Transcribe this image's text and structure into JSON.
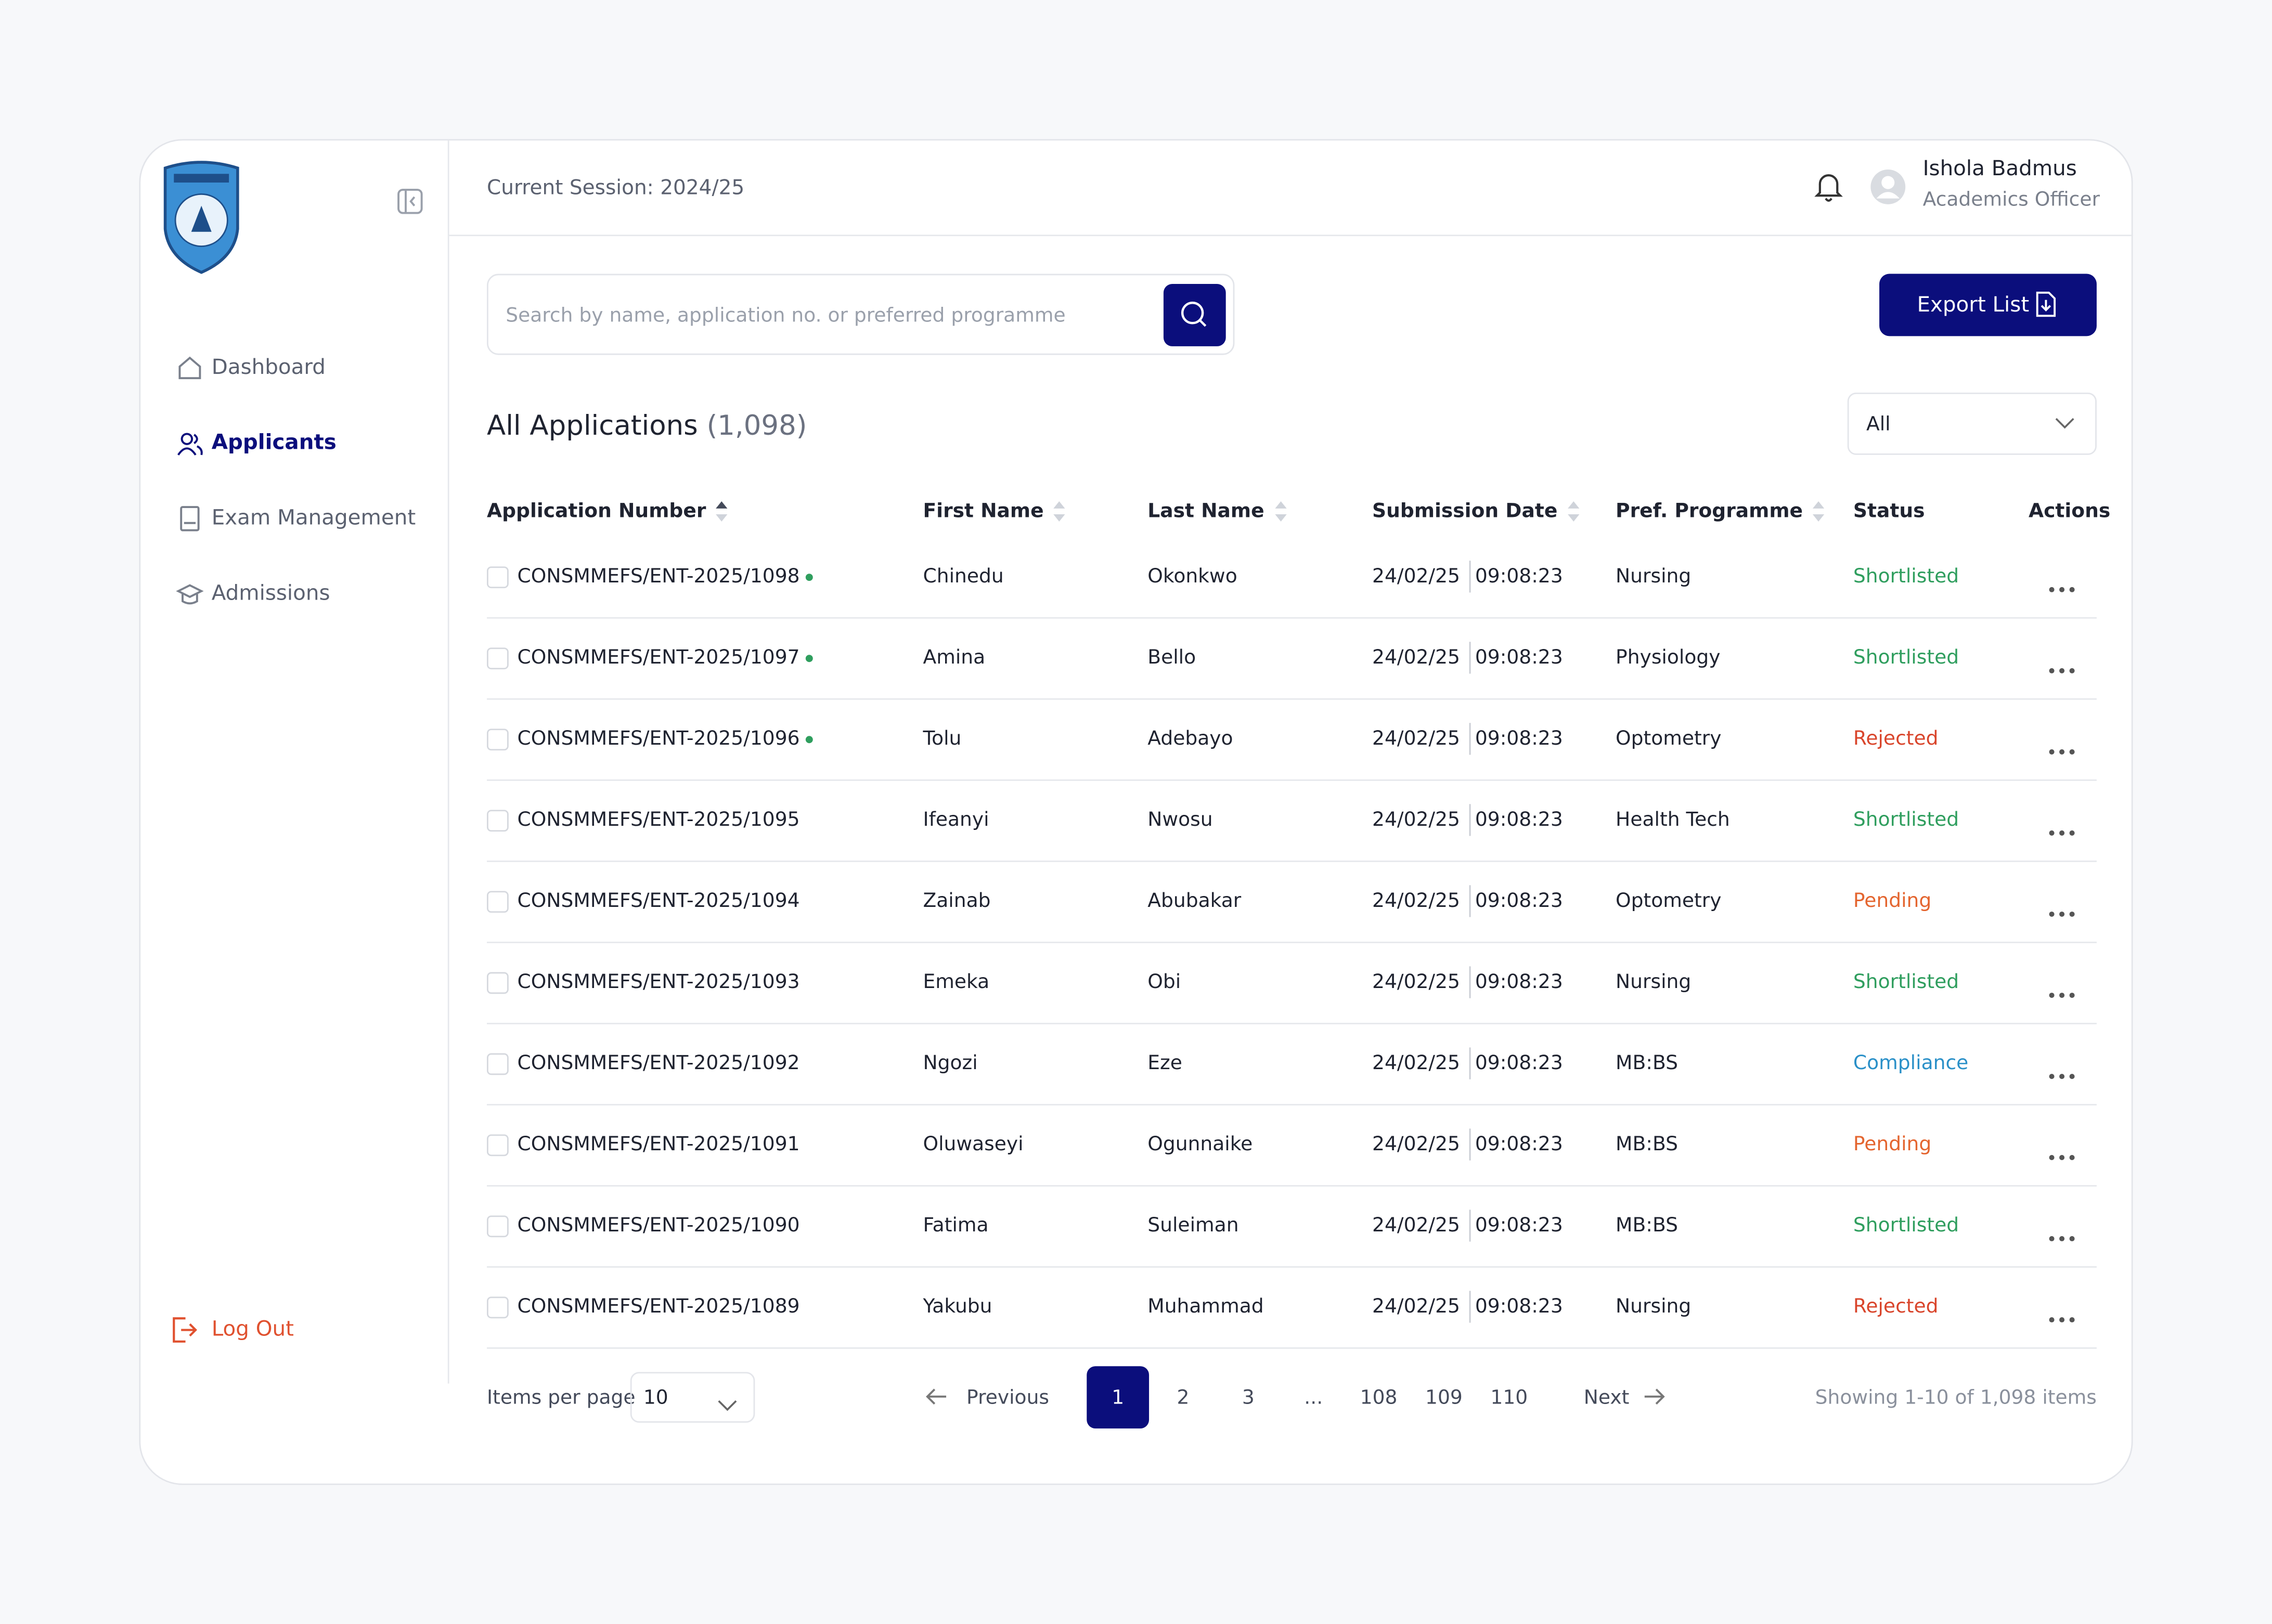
{
  "header": {
    "session": "Current Session: 2024/25",
    "user_name": "Ishola Badmus",
    "user_role": "Academics Officer"
  },
  "sidebar": {
    "nav": [
      {
        "label": "Dashboard",
        "active": false
      },
      {
        "label": "Applicants",
        "active": true
      },
      {
        "label": "Exam Management",
        "active": false
      },
      {
        "label": "Admissions",
        "active": false
      }
    ],
    "logout": "Log Out"
  },
  "toolbar": {
    "search_placeholder": "Search by name, application no. or preferred programme",
    "export": "Export List"
  },
  "list": {
    "title": "All Applications",
    "count": "(1,098)",
    "filter": "All"
  },
  "table": {
    "columns": [
      {
        "label": "Application Number",
        "sort": "asc"
      },
      {
        "label": "First Name",
        "sort": "none"
      },
      {
        "label": "Last Name",
        "sort": "none"
      },
      {
        "label": "Submission Date",
        "sort": "none"
      },
      {
        "label": "Pref. Programme",
        "sort": "none"
      },
      {
        "label": "Status"
      },
      {
        "label": "Actions"
      }
    ],
    "rows": [
      {
        "number": "CONSMMEFS/ENT-2025/1098",
        "new": true,
        "first": "Chinedu",
        "last": "Okonkwo",
        "date": "24/02/25",
        "time": "09:08:23",
        "programme": "Nursing",
        "status": "Shortlisted",
        "status_color": "#2f9e5e"
      },
      {
        "number": "CONSMMEFS/ENT-2025/1097",
        "new": true,
        "first": "Amina",
        "last": "Bello",
        "date": "24/02/25",
        "time": "09:08:23",
        "programme": "Physiology",
        "status": "Shortlisted",
        "status_color": "#2f9e5e"
      },
      {
        "number": "CONSMMEFS/ENT-2025/1096",
        "new": true,
        "first": "Tolu",
        "last": "Adebayo",
        "date": "24/02/25",
        "time": "09:08:23",
        "programme": "Optometry",
        "status": "Rejected",
        "status_color": "#d9452b"
      },
      {
        "number": "CONSMMEFS/ENT-2025/1095",
        "new": false,
        "first": "Ifeanyi",
        "last": "Nwosu",
        "date": "24/02/25",
        "time": "09:08:23",
        "programme": "Health Tech",
        "status": "Shortlisted",
        "status_color": "#2f9e5e"
      },
      {
        "number": "CONSMMEFS/ENT-2025/1094",
        "new": false,
        "first": "Zainab",
        "last": "Abubakar",
        "date": "24/02/25",
        "time": "09:08:23",
        "programme": "Optometry",
        "status": "Pending",
        "status_color": "#e4652f"
      },
      {
        "number": "CONSMMEFS/ENT-2025/1093",
        "new": false,
        "first": "Emeka",
        "last": "Obi",
        "date": "24/02/25",
        "time": "09:08:23",
        "programme": "Nursing",
        "status": "Shortlisted",
        "status_color": "#2f9e5e"
      },
      {
        "number": "CONSMMEFS/ENT-2025/1092",
        "new": false,
        "first": "Ngozi",
        "last": "Eze",
        "date": "24/02/25",
        "time": "09:08:23",
        "programme": "MB:BS",
        "status": "Compliance",
        "status_color": "#2a90c8"
      },
      {
        "number": "CONSMMEFS/ENT-2025/1091",
        "new": false,
        "first": "Oluwaseyi",
        "last": "Ogunnaike",
        "date": "24/02/25",
        "time": "09:08:23",
        "programme": "MB:BS",
        "status": "Pending",
        "status_color": "#e4652f"
      },
      {
        "number": "CONSMMEFS/ENT-2025/1090",
        "new": false,
        "first": "Fatima",
        "last": "Suleiman",
        "date": "24/02/25",
        "time": "09:08:23",
        "programme": "MB:BS",
        "status": "Shortlisted",
        "status_color": "#2f9e5e"
      },
      {
        "number": "CONSMMEFS/ENT-2025/1089",
        "new": false,
        "first": "Yakubu",
        "last": "Muhammad",
        "date": "24/02/25",
        "time": "09:08:23",
        "programme": "Nursing",
        "status": "Rejected",
        "status_color": "#d9452b"
      }
    ]
  },
  "pagination": {
    "per_page_label": "Items per page",
    "per_page": "10",
    "previous": "Previous",
    "pages": [
      "1",
      "2",
      "3",
      "...",
      "108",
      "109",
      "110"
    ],
    "current": 0,
    "next": "Next",
    "summary": "Showing 1-10 of 1,098 items"
  }
}
